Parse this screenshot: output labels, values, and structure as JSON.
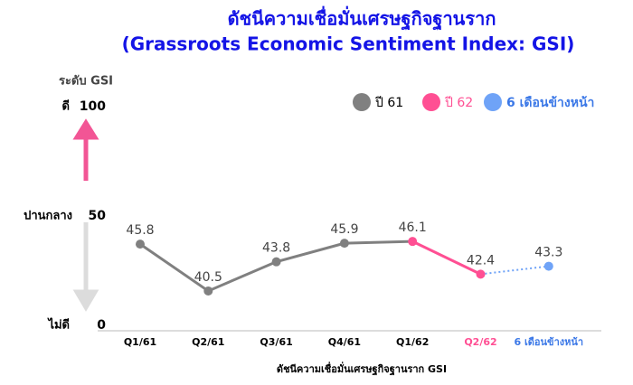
{
  "chart_data": {
    "type": "line",
    "title": "ดัชนีความเชื่อมั่นเศรษฐกิจฐานราก",
    "subtitle": "(Grassroots Economic Sentiment Index: GSI)",
    "y_label": "ระดับ GSI",
    "x_label": "ดัชนีความเชื่อมั่นเศรษฐกิจฐานราก GSI",
    "categories": [
      "Q1/61",
      "Q2/61",
      "Q3/61",
      "Q4/61",
      "Q1/62",
      "Q2/62",
      "6 เดือนข้างหน้า"
    ],
    "category_colors": [
      "#000000",
      "#000000",
      "#000000",
      "#000000",
      "#000000",
      "#ff4f93",
      "#3b78e7"
    ],
    "series": [
      {
        "name": "ปี 61",
        "color": "#808080",
        "values": [
          45.8,
          40.5,
          43.8,
          45.9,
          null,
          null,
          null
        ]
      },
      {
        "name": "ปี 62",
        "color": "#ff4f93",
        "values": [
          null,
          null,
          null,
          null,
          46.1,
          42.4,
          null
        ]
      },
      {
        "name": "6 เดือนข้างหน้า",
        "color": "#6fa3f7",
        "dashed": true,
        "values": [
          null,
          null,
          null,
          null,
          null,
          null,
          43.3
        ]
      }
    ],
    "ylim": [
      36,
      50
    ],
    "level_scale": {
      "labels": [
        "ไม่ดี",
        "ปานกลาง",
        "ดี"
      ],
      "values": [
        0,
        50,
        100
      ]
    },
    "legend": "top-right"
  }
}
